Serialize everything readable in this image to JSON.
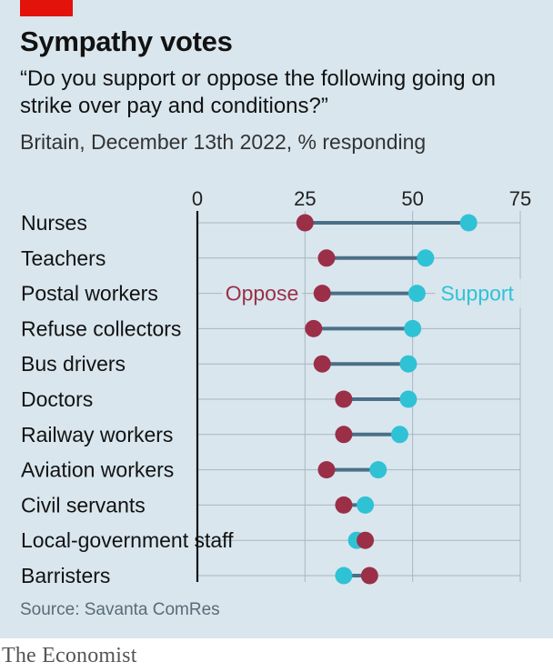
{
  "header": {
    "title": "Sympathy votes",
    "subtitle": "“Do you support or oppose the following going on strike over pay and conditions?”",
    "note": "Britain, December 13th 2022, % responding"
  },
  "footer": {
    "source": "Source: Savanta ComRes",
    "brand": "The Economist"
  },
  "colors": {
    "oppose": "#9b2f48",
    "support": "#2fc2d5",
    "connector": "#4a6f86",
    "grid": "#a7b6c0",
    "axis": "#121212"
  },
  "chart_data": {
    "type": "dot-range",
    "xlim": [
      0,
      75
    ],
    "ticks": [
      "0",
      "25",
      "50",
      "75"
    ],
    "grid": true,
    "categories": [
      "Nurses",
      "Teachers",
      "Postal workers",
      "Refuse collectors",
      "Bus drivers",
      "Doctors",
      "Railway workers",
      "Aviation workers",
      "Civil servants",
      "Local-government staff",
      "Barristers"
    ],
    "series": [
      {
        "name": "Oppose",
        "values": [
          25,
          30,
          29,
          27,
          29,
          34,
          34,
          30,
          34,
          39,
          40
        ]
      },
      {
        "name": "Support",
        "values": [
          63,
          53,
          51,
          50,
          49,
          49,
          47,
          42,
          39,
          37,
          34
        ]
      }
    ],
    "annotations": {
      "oppose": "Oppose",
      "support": "Support"
    }
  }
}
